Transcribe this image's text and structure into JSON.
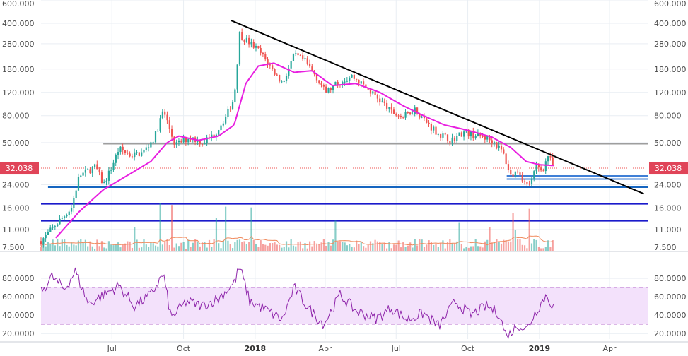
{
  "colors": {
    "background": "#ffffff",
    "grid": "#e9eef3",
    "up_candle": "#26a69a",
    "down_candle": "#ef5350",
    "ma_line": "#e81ee0",
    "trendline": "#000000",
    "resistance_gray": "#9e9e9e",
    "support_blue": "#1565c0",
    "support_navy": "#1a1acb",
    "short_blue": "#3f7fd6",
    "volume_ma": "#f08a5d",
    "rsi_line": "#8e24aa",
    "rsi_band_fill": "#f3e1fb",
    "rsi_band_border": "#c58bd6",
    "price_label_bg": "#e04458",
    "price_label_text": "#ffffff"
  },
  "chart_data": [
    {
      "type": "candlestick",
      "scale": "log",
      "ylim": [
        7.5,
        600
      ],
      "y_ticks": [
        "600.000",
        "400.000",
        "280.000",
        "180.000",
        "120.000",
        "80.000",
        "50.000",
        "24.000",
        "16.000",
        "11.000",
        "7.500"
      ],
      "y_tick_values": [
        600,
        400,
        280,
        180,
        120,
        80,
        50,
        24,
        16,
        11,
        7.5
      ],
      "x_ticks": [
        "Jul",
        "Oct",
        "2018",
        "Apr",
        "Jul",
        "Oct",
        "2019",
        "Apr"
      ],
      "x_range": [
        "2017-04-01",
        "2019-05-20"
      ],
      "x_tick_dates": [
        "2017-07-01",
        "2017-10-01",
        "2018-01-01",
        "2018-04-01",
        "2018-07-01",
        "2018-10-01",
        "2019-01-01",
        "2019-04-01"
      ],
      "last_price": "32.038",
      "price_path": [
        [
          "2017-04-01",
          9.0
        ],
        [
          "2017-04-20",
          12.0
        ],
        [
          "2017-05-10",
          16.0
        ],
        [
          "2017-05-20",
          28.0
        ],
        [
          "2017-06-10",
          33.0
        ],
        [
          "2017-06-20",
          24.0
        ],
        [
          "2017-06-30",
          32.0
        ],
        [
          "2017-07-10",
          45.0
        ],
        [
          "2017-07-25",
          40.0
        ],
        [
          "2017-08-10",
          42.0
        ],
        [
          "2017-08-25",
          55.0
        ],
        [
          "2017-09-05",
          88.0
        ],
        [
          "2017-09-20",
          48.0
        ],
        [
          "2017-10-10",
          55.0
        ],
        [
          "2017-10-25",
          50.0
        ],
        [
          "2017-11-10",
          58.0
        ],
        [
          "2017-11-25",
          80.0
        ],
        [
          "2017-12-05",
          110.0
        ],
        [
          "2017-12-12",
          330.0
        ],
        [
          "2017-12-20",
          300.0
        ],
        [
          "2018-01-05",
          250.0
        ],
        [
          "2018-01-20",
          190.0
        ],
        [
          "2018-02-05",
          140.0
        ],
        [
          "2018-02-20",
          230.0
        ],
        [
          "2018-03-05",
          210.0
        ],
        [
          "2018-03-20",
          160.0
        ],
        [
          "2018-04-01",
          120.0
        ],
        [
          "2018-04-20",
          145.0
        ],
        [
          "2018-05-05",
          160.0
        ],
        [
          "2018-05-20",
          135.0
        ],
        [
          "2018-06-10",
          105.0
        ],
        [
          "2018-06-25",
          85.0
        ],
        [
          "2018-07-10",
          78.0
        ],
        [
          "2018-07-25",
          90.0
        ],
        [
          "2018-08-10",
          70.0
        ],
        [
          "2018-08-25",
          58.0
        ],
        [
          "2018-09-10",
          52.0
        ],
        [
          "2018-09-25",
          60.0
        ],
        [
          "2018-10-10",
          57.0
        ],
        [
          "2018-10-25",
          54.0
        ],
        [
          "2018-11-05",
          50.0
        ],
        [
          "2018-11-15",
          42.0
        ],
        [
          "2018-11-25",
          28.0
        ],
        [
          "2018-12-05",
          31.0
        ],
        [
          "2018-12-15",
          23.5
        ],
        [
          "2018-12-22",
          26.0
        ],
        [
          "2018-12-28",
          33.0
        ],
        [
          "2019-01-05",
          31.0
        ],
        [
          "2019-01-12",
          40.0
        ],
        [
          "2019-01-20",
          32.0
        ]
      ],
      "moving_average": [
        [
          "2017-04-20",
          9.5
        ],
        [
          "2017-05-20",
          15.0
        ],
        [
          "2017-06-20",
          22.0
        ],
        [
          "2017-07-20",
          28.0
        ],
        [
          "2017-08-20",
          36.0
        ],
        [
          "2017-09-10",
          50.0
        ],
        [
          "2017-09-25",
          56.0
        ],
        [
          "2017-10-20",
          52.0
        ],
        [
          "2017-11-15",
          56.0
        ],
        [
          "2017-12-05",
          68.0
        ],
        [
          "2017-12-20",
          140.0
        ],
        [
          "2018-01-05",
          190.0
        ],
        [
          "2018-01-25",
          200.0
        ],
        [
          "2018-02-20",
          170.0
        ],
        [
          "2018-03-15",
          175.0
        ],
        [
          "2018-04-10",
          135.0
        ],
        [
          "2018-05-10",
          140.0
        ],
        [
          "2018-06-10",
          120.0
        ],
        [
          "2018-07-10",
          95.0
        ],
        [
          "2018-08-05",
          80.0
        ],
        [
          "2018-09-01",
          68.0
        ],
        [
          "2018-10-01",
          62.0
        ],
        [
          "2018-11-01",
          55.0
        ],
        [
          "2018-11-25",
          46.0
        ],
        [
          "2018-12-15",
          36.0
        ],
        [
          "2019-01-01",
          34.0
        ],
        [
          "2019-01-20",
          33.5
        ]
      ],
      "trendline": [
        [
          "2017-12-01",
          420.0
        ],
        [
          "2019-05-15",
          20.5
        ]
      ],
      "horizontal_lines": [
        {
          "value": 49.0,
          "from": "2017-06-20",
          "color_key": "resistance_gray"
        },
        {
          "value": 32.038,
          "from": "2017-04-01",
          "color_key": "down_candle",
          "dotted": true
        },
        {
          "value": 28.0,
          "from": "2018-11-20",
          "color_key": "short_blue"
        },
        {
          "value": 26.5,
          "from": "2018-11-20",
          "color_key": "short_blue"
        },
        {
          "value": 23.0,
          "from": "2017-04-10",
          "color_key": "support_blue"
        },
        {
          "value": 17.2,
          "from": "2017-04-01",
          "color_key": "support_navy"
        },
        {
          "value": 12.8,
          "from": "2017-04-01",
          "color_key": "support_navy"
        }
      ]
    },
    {
      "type": "line",
      "ylim": [
        14,
        97
      ],
      "y_ticks": [
        "80.0000",
        "60.0000",
        "40.0000",
        "20.0000"
      ],
      "y_tick_values": [
        80,
        60,
        40,
        20
      ],
      "band": [
        30,
        70
      ],
      "rsi_path": [
        [
          "2017-04-01",
          65
        ],
        [
          "2017-04-15",
          82
        ],
        [
          "2017-05-01",
          68
        ],
        [
          "2017-05-15",
          88
        ],
        [
          "2017-06-01",
          52
        ],
        [
          "2017-06-20",
          62
        ],
        [
          "2017-07-10",
          72
        ],
        [
          "2017-07-30",
          50
        ],
        [
          "2017-08-20",
          62
        ],
        [
          "2017-09-05",
          85
        ],
        [
          "2017-09-15",
          37
        ],
        [
          "2017-10-05",
          55
        ],
        [
          "2017-10-25",
          50
        ],
        [
          "2017-11-15",
          58
        ],
        [
          "2017-12-05",
          75
        ],
        [
          "2017-12-12",
          93
        ],
        [
          "2017-12-25",
          55
        ],
        [
          "2018-01-15",
          46
        ],
        [
          "2018-02-05",
          35
        ],
        [
          "2018-02-20",
          70
        ],
        [
          "2018-03-10",
          48
        ],
        [
          "2018-03-30",
          30
        ],
        [
          "2018-04-20",
          62
        ],
        [
          "2018-05-10",
          45
        ],
        [
          "2018-06-05",
          36
        ],
        [
          "2018-06-25",
          48
        ],
        [
          "2018-07-15",
          35
        ],
        [
          "2018-08-05",
          42
        ],
        [
          "2018-08-25",
          28
        ],
        [
          "2018-09-15",
          55
        ],
        [
          "2018-10-05",
          40
        ],
        [
          "2018-10-25",
          50
        ],
        [
          "2018-11-10",
          42
        ],
        [
          "2018-11-20",
          16
        ],
        [
          "2018-12-05",
          30
        ],
        [
          "2018-12-15",
          24
        ],
        [
          "2018-12-28",
          45
        ],
        [
          "2019-01-10",
          62
        ],
        [
          "2019-01-20",
          47
        ]
      ]
    }
  ]
}
